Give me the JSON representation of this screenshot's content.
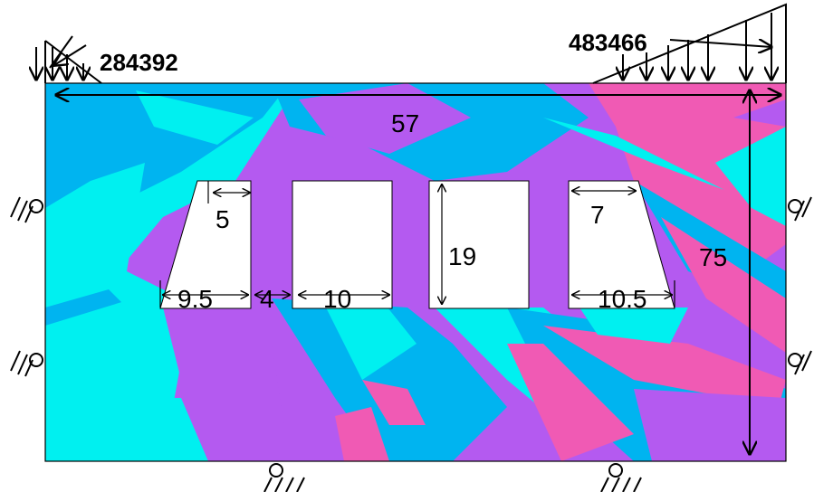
{
  "colors": {
    "cyan": "#00f0f0",
    "blue": "#00b4f0",
    "purple": "#b45af0",
    "pink": "#f05ab4",
    "hole": "#ffffff",
    "outline": "#000000"
  },
  "loads": {
    "left": "284392",
    "right": "483466"
  },
  "dimensions": {
    "total_width": "57",
    "total_height": "75",
    "hole_top_left": "5",
    "hole_bottom_left": "9.5",
    "gap": "4",
    "hole_width_2": "10",
    "hole_height": "19",
    "hole_top_right": "7",
    "hole_bottom_right": "10.5"
  },
  "supports": {
    "left": "pin",
    "right": "pin",
    "bottom": "pin"
  }
}
